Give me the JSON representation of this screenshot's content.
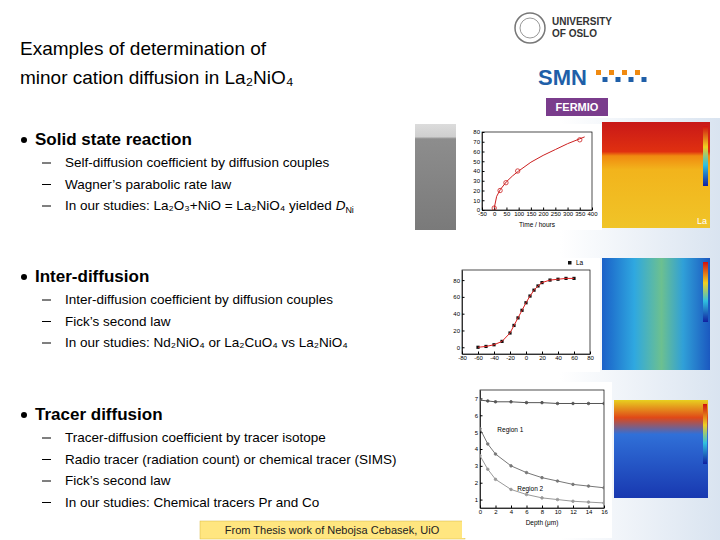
{
  "slide": {
    "title": [
      "Examples of determination of",
      "minor cation diffusion in La₂NiO₄"
    ],
    "logos": {
      "university": [
        "UNIVERSITY",
        "OF OSLO"
      ],
      "smn": "SMN",
      "fermio": "FERMIO"
    },
    "sections": [
      {
        "heading": "Solid state reaction",
        "items": [
          {
            "text": "Self-diffusion coefficient by diffusion couples"
          },
          {
            "text": "Wagner’s parabolic rate law"
          },
          {
            "text": "In our studies: La₂O₃+NiO = La₂NiO₄ yielded ",
            "symbol": "D",
            "subscript": "Ni"
          }
        ]
      },
      {
        "heading": "Inter-diffusion",
        "items": [
          {
            "text": "Inter-diffusion coefficient by diffusion couples"
          },
          {
            "text": "Fick’s second law"
          },
          {
            "text": "In our studies: Nd₂NiO₄ or La₂CuO₄ vs La₂NiO₄"
          }
        ]
      },
      {
        "heading": "Tracer diffusion",
        "items": [
          {
            "text": "Tracer-diffusion coefficient by tracer isotope"
          },
          {
            "text": "Radio tracer (radiation count) or chemical tracer (SIMS)"
          },
          {
            "text": "Fick’s second law"
          },
          {
            "text": "In our studies: Chemical tracers Pr and Co"
          }
        ]
      }
    ],
    "image_label": "La",
    "footer": "From Thesis work of Nebojsa Cebasek, UiO"
  },
  "chart_data": [
    {
      "type": "line",
      "x_label": "Time / hours",
      "xlim": [
        -50,
        400
      ],
      "xticks": [
        -50,
        0,
        50,
        100,
        150,
        200,
        250,
        300,
        350,
        400
      ],
      "ylim": [
        0,
        80
      ],
      "yticks": [
        0,
        10,
        20,
        30,
        40,
        50,
        60,
        70,
        80
      ],
      "series": [
        {
          "color": "#cc2020",
          "marker": "none",
          "line_style": "solid",
          "x": [
            0,
            10,
            25,
            50,
            75,
            100,
            150,
            200,
            250,
            300,
            350,
            370
          ],
          "values": [
            2,
            14,
            21,
            29,
            35,
            40,
            49,
            56,
            62,
            68,
            73,
            75
          ]
        },
        {
          "color": "#cc2020",
          "marker": "circle",
          "line_style": "none",
          "x": [
            0,
            24,
            48,
            96,
            350
          ],
          "values": [
            2,
            20,
            28,
            40,
            72
          ]
        }
      ]
    },
    {
      "type": "line",
      "legend": "upper right",
      "xlim": [
        -80,
        80
      ],
      "xticks": [
        -80,
        -60,
        -40,
        -20,
        0,
        20,
        40,
        60,
        80
      ],
      "ylim": [
        -8,
        92
      ],
      "yticks": [
        0,
        20,
        40,
        60,
        80
      ],
      "series": [
        {
          "name": "La",
          "color": "#111111",
          "marker": "square",
          "line_style": "none",
          "x": [
            -60,
            -50,
            -40,
            -30,
            -20,
            -15,
            -10,
            -5,
            0,
            5,
            10,
            15,
            20,
            30,
            40,
            50,
            60
          ],
          "values": [
            0,
            1,
            3,
            7,
            17,
            26,
            35,
            44,
            53,
            61,
            68,
            73,
            77,
            80,
            81,
            82,
            82
          ]
        },
        {
          "color": "#dd2020",
          "marker": "none",
          "line_style": "solid",
          "x": [
            -60,
            -50,
            -40,
            -30,
            -20,
            -15,
            -10,
            -5,
            0,
            5,
            10,
            15,
            20,
            30,
            40,
            50,
            60
          ],
          "values": [
            0,
            1,
            3,
            7,
            17,
            26,
            35,
            44,
            53,
            61,
            68,
            73,
            77,
            80,
            81,
            82,
            82
          ]
        }
      ]
    },
    {
      "type": "line",
      "x_label": "Depth (μm)",
      "annotations": [
        "Region 1",
        "Region 2"
      ],
      "xlim": [
        0,
        16
      ],
      "xticks": [
        0,
        2,
        4,
        6,
        8,
        10,
        12,
        14,
        16
      ],
      "ylim": [
        0.5,
        7.5
      ],
      "yticks": [
        1,
        2,
        3,
        4,
        5,
        6,
        7
      ],
      "series": [
        {
          "color": "#555555",
          "marker": "circle",
          "line_style": "solid",
          "x": [
            0,
            1,
            2,
            4,
            6,
            8,
            10,
            12,
            14,
            16
          ],
          "values": [
            6.9,
            6.85,
            6.8,
            6.8,
            6.75,
            6.75,
            6.7,
            6.7,
            6.7,
            6.7
          ]
        },
        {
          "color": "#777777",
          "marker": "circle",
          "line_style": "solid",
          "x": [
            0,
            1,
            2,
            4,
            6,
            8,
            10,
            12,
            14,
            16
          ],
          "values": [
            5.2,
            4.3,
            3.7,
            3.0,
            2.6,
            2.3,
            2.1,
            1.9,
            1.8,
            1.7
          ]
        },
        {
          "color": "#999999",
          "marker": "circle",
          "line_style": "solid",
          "x": [
            0,
            1,
            2,
            4,
            6,
            8,
            10,
            12,
            14,
            16
          ],
          "values": [
            3.6,
            2.8,
            2.2,
            1.6,
            1.3,
            1.1,
            1.0,
            0.9,
            0.85,
            0.8
          ]
        }
      ]
    }
  ]
}
